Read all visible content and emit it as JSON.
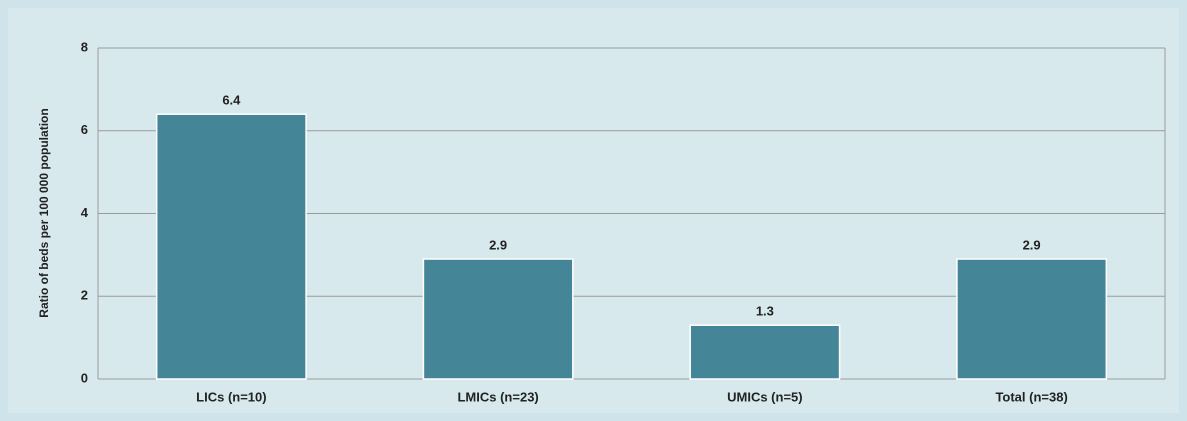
{
  "chart_data": {
    "type": "bar",
    "y_label": "Ratio of beds per 100 000 population",
    "categories": [
      "LICs (n=10)",
      "LMICs (n=23)",
      "UMICs (n=5)",
      "Total (n=38)"
    ],
    "values": [
      6.4,
      2.9,
      1.3,
      2.9
    ],
    "color": "#448597",
    "ylim": [
      0,
      8
    ],
    "yticks": [
      0,
      2,
      4,
      6,
      8
    ],
    "grid": true
  }
}
